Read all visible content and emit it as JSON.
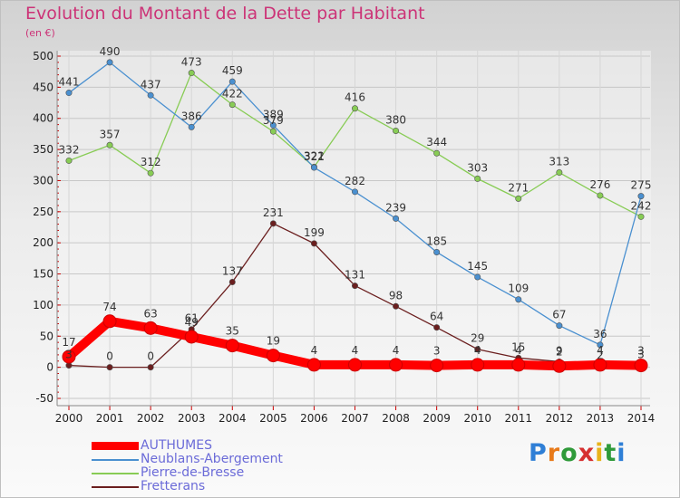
{
  "chart_data": {
    "type": "line",
    "title": "Evolution du Montant de la Dette par Habitant",
    "subtitle": "(en €)",
    "x": [
      2000,
      2001,
      2002,
      2003,
      2004,
      2005,
      2006,
      2007,
      2008,
      2009,
      2010,
      2011,
      2012,
      2013,
      2014
    ],
    "ylim": [
      -50,
      500
    ],
    "yticks": [
      -50,
      0,
      50,
      100,
      150,
      200,
      250,
      300,
      350,
      400,
      450,
      500
    ],
    "grid": true,
    "legend_position": "bottom-left",
    "series": [
      {
        "name": "AUTHUMES",
        "color": "#ff0000",
        "values": [
          17,
          74,
          63,
          49,
          35,
          19,
          4,
          4,
          4,
          3,
          4,
          4,
          2,
          4,
          3
        ]
      },
      {
        "name": "Neublans-Abergement",
        "color": "#4a90d0",
        "values": [
          441,
          490,
          437,
          386,
          459,
          389,
          321,
          282,
          239,
          185,
          145,
          109,
          67,
          36,
          275
        ]
      },
      {
        "name": "Pierre-de-Bresse",
        "color": "#88cc55",
        "values": [
          332,
          357,
          312,
          473,
          422,
          379,
          322,
          416,
          380,
          344,
          303,
          271,
          313,
          276,
          242
        ]
      },
      {
        "name": "Fretterans",
        "color": "#6b1f1f",
        "values": [
          3,
          0,
          0,
          61,
          137,
          231,
          199,
          131,
          98,
          64,
          29,
          15,
          9,
          2,
          3
        ]
      }
    ]
  },
  "branding": {
    "logo_text": "Proxiti"
  }
}
